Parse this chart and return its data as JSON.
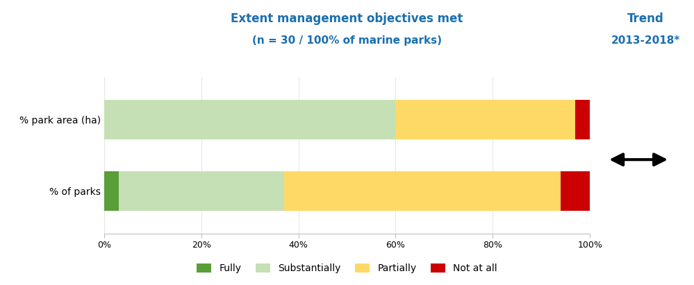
{
  "categories": [
    "% of parks",
    "% park area (ha)"
  ],
  "segments": [
    "Fully",
    "Substantially",
    "Partially",
    "Not at all"
  ],
  "colors": [
    "#5a9e3a",
    "#c5e0b4",
    "#ffd966",
    "#cc0000"
  ],
  "values": [
    [
      3,
      34,
      57,
      6
    ],
    [
      0,
      60,
      37,
      3
    ]
  ],
  "title_line1": "Extent management objectives met",
  "title_line2": "(n = 30 / 100% of marine parks)",
  "title_color": "#1a6faf",
  "trend_line1": "Trend",
  "trend_line2": "2013-2018*",
  "trend_color": "#1a6faf",
  "xlim": [
    0,
    100
  ],
  "xticks": [
    0,
    20,
    40,
    60,
    80,
    100
  ],
  "xticklabels": [
    "0%",
    "20%",
    "40%",
    "60%",
    "80%",
    "100%"
  ],
  "bar_height": 0.55,
  "background_color": "#ffffff",
  "legend_fontsize": 10,
  "axis_label_fontsize": 10,
  "title_fontsize": 12
}
